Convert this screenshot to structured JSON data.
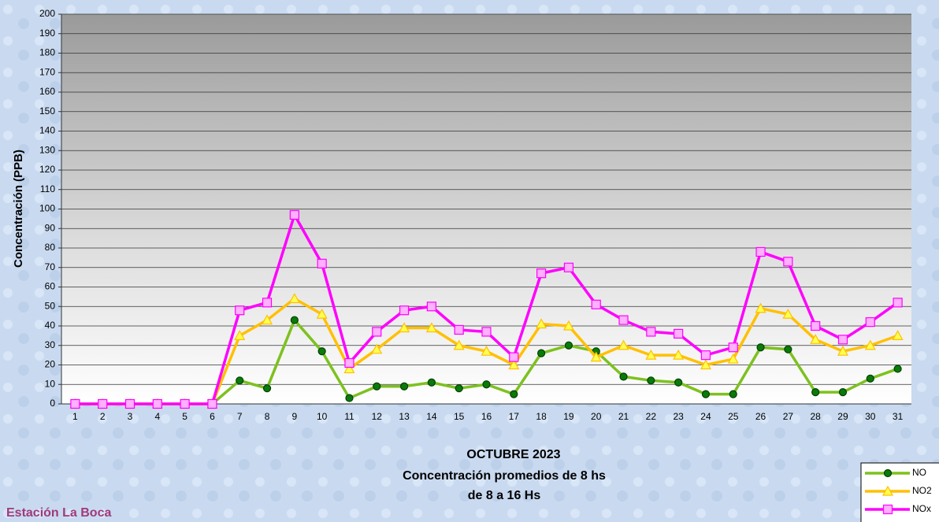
{
  "chart_data": {
    "type": "line",
    "title": "OCTUBRE 2023",
    "subtitle": [
      "Concentración promedios de 8 hs",
      "de 8 a 16 Hs"
    ],
    "station": "Estación La Boca",
    "y_label": "Concentración (PPB)",
    "categories": [
      "1",
      "2",
      "3",
      "4",
      "5",
      "6",
      "7",
      "8",
      "9",
      "10",
      "11",
      "12",
      "13",
      "14",
      "15",
      "16",
      "17",
      "18",
      "19",
      "20",
      "21",
      "22",
      "23",
      "24",
      "25",
      "26",
      "27",
      "28",
      "29",
      "30",
      "31"
    ],
    "series": [
      {
        "name": "NO",
        "color": "#7dc11f",
        "marker": "circle",
        "marker_color": "#0a7a0a",
        "values": [
          0,
          0,
          0,
          0,
          0,
          0,
          12,
          8,
          43,
          27,
          3,
          9,
          9,
          11,
          8,
          10,
          5,
          26,
          30,
          27,
          14,
          12,
          11,
          5,
          5,
          29,
          28,
          6,
          6,
          13,
          18
        ]
      },
      {
        "name": "NO2",
        "color": "#ffc000",
        "marker": "triangle",
        "marker_color": "#ffff50",
        "values": [
          0,
          0,
          0,
          0,
          0,
          0,
          35,
          43,
          54,
          46,
          18,
          28,
          39,
          39,
          30,
          27,
          20,
          41,
          40,
          24,
          30,
          25,
          25,
          20,
          23,
          49,
          46,
          33,
          27,
          30,
          35
        ]
      },
      {
        "name": "NOx",
        "color": "#ff00ff",
        "marker": "square",
        "marker_color": "#ffb0ff",
        "values": [
          0,
          0,
          0,
          0,
          0,
          0,
          48,
          52,
          97,
          72,
          21,
          37,
          48,
          50,
          38,
          37,
          24,
          67,
          70,
          51,
          43,
          37,
          36,
          25,
          29,
          78,
          73,
          40,
          33,
          42,
          52
        ]
      }
    ],
    "ylim": [
      0,
      200
    ],
    "yticks": [
      0,
      10,
      20,
      30,
      40,
      50,
      60,
      70,
      80,
      90,
      100,
      110,
      120,
      130,
      140,
      150,
      160,
      170,
      180,
      190,
      200
    ],
    "grid": true
  }
}
